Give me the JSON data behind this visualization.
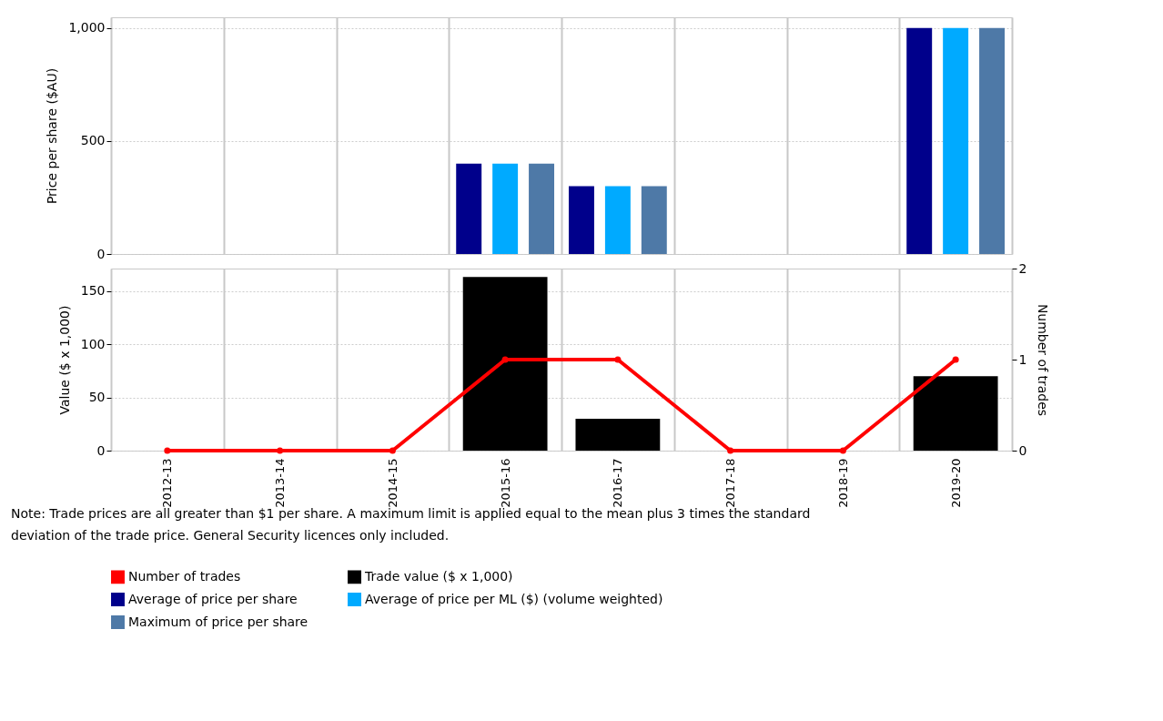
{
  "chart_data": [
    {
      "type": "bar",
      "ylabel": "Price per share ($AU)",
      "categories": [
        "2012-13",
        "2013-14",
        "2014-15",
        "2015-16",
        "2016-17",
        "2017-18",
        "2018-19",
        "2019-20"
      ],
      "series": [
        {
          "name": "Average of price per share",
          "color": "#00008b",
          "values": [
            null,
            null,
            null,
            400,
            300,
            null,
            null,
            1000
          ]
        },
        {
          "name": "Average of price per ML ($) (volume weighted)",
          "color": "#00aaff",
          "values": [
            null,
            null,
            null,
            400,
            300,
            null,
            null,
            1000
          ]
        },
        {
          "name": "Maximum of price per share",
          "color": "#4e79a7",
          "values": [
            null,
            null,
            null,
            400,
            300,
            null,
            null,
            1000
          ]
        }
      ],
      "ylim": [
        0,
        1047
      ],
      "yticks": [
        0,
        500,
        {
          "value": 1000,
          "label": "1,000"
        }
      ],
      "grid": true,
      "tick_labels": "y",
      "legend": "bottom"
    },
    {
      "type": "bar",
      "ylabel": "Value ($ x 1,000)",
      "y2label": "Number of trades",
      "categories": [
        "2012-13",
        "2013-14",
        "2014-15",
        "2015-16",
        "2016-17",
        "2017-18",
        "2018-19",
        "2019-20"
      ],
      "series": [
        {
          "name": "Number of trades",
          "type": "line",
          "axis": "y2",
          "color": "#ff0000",
          "values": [
            0,
            0,
            0,
            1,
            1,
            0,
            0,
            1
          ]
        },
        {
          "name": "Trade value ($ x 1,000)",
          "color": "#000000",
          "values": [
            null,
            null,
            null,
            163,
            30,
            null,
            null,
            70
          ]
        }
      ],
      "ylim": [
        0,
        171
      ],
      "yticks": [
        0,
        50,
        100,
        150
      ],
      "y2lim": [
        0,
        2
      ],
      "y2ticks": [
        0,
        1,
        2
      ],
      "marker": "circle",
      "grid": true,
      "legend": "bottom",
      "annotations": [
        "Note: Trade prices are all greater than $1 per share. A maximum limit is applied equal to the mean plus 3 times the standard deviation of the trade price. General Security licences only included."
      ]
    }
  ]
}
